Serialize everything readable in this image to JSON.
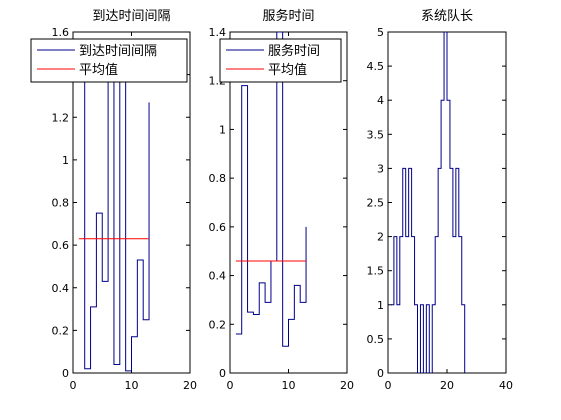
{
  "chart_data": [
    {
      "type": "line",
      "step": true,
      "title": "到达时间间隔",
      "xlim": [
        0,
        20
      ],
      "ylim": [
        0,
        1.6
      ],
      "xticks": [
        0,
        10,
        20
      ],
      "yticks": [
        0,
        0.2,
        0.4,
        0.6,
        0.8,
        1,
        1.2,
        1.4,
        1.6
      ],
      "ytick_labels": [
        "0",
        "0.2",
        "0.4",
        "0.6",
        "0.8",
        "1",
        "1.2",
        "1.4",
        "1.6"
      ],
      "legend": {
        "placement": "top",
        "entries": [
          "到达时间间隔",
          "平均值"
        ]
      },
      "series": [
        {
          "name": "到达时间间隔",
          "color": "#00008b",
          "x": [
            1,
            2,
            3,
            4,
            5,
            6,
            7,
            8,
            9,
            10,
            11,
            12,
            13
          ],
          "y": [
            1.55,
            0.02,
            0.31,
            0.75,
            0.43,
            1.55,
            0.04,
            1.55,
            0.01,
            0.17,
            0.53,
            0.25,
            1.27
          ]
        },
        {
          "name": "平均值",
          "color": "#ff0000",
          "x": [
            1,
            13
          ],
          "y": [
            0.63,
            0.63
          ]
        }
      ]
    },
    {
      "type": "line",
      "step": true,
      "title": "服务时间",
      "xlim": [
        0,
        20
      ],
      "ylim": [
        0,
        1.4
      ],
      "xticks": [
        0,
        10,
        20
      ],
      "yticks": [
        0,
        0.2,
        0.4,
        0.6,
        0.8,
        1,
        1.2,
        1.4
      ],
      "ytick_labels": [
        "0",
        "0.2",
        "0.4",
        "0.6",
        "0.8",
        "1",
        "1.2",
        "1.4"
      ],
      "legend": {
        "placement": "top",
        "entries": [
          "服务时间",
          "平均值"
        ]
      },
      "series": [
        {
          "name": "服务时间",
          "color": "#00008b",
          "x": [
            1,
            2,
            3,
            4,
            5,
            6,
            7,
            8,
            9,
            10,
            11,
            12,
            13
          ],
          "y": [
            0.16,
            1.18,
            0.25,
            0.24,
            0.37,
            0.29,
            0.46,
            1.4,
            0.11,
            0.22,
            0.36,
            0.29,
            0.6
          ]
        },
        {
          "name": "平均值",
          "color": "#ff0000",
          "x": [
            1,
            13
          ],
          "y": [
            0.46,
            0.46
          ]
        }
      ]
    },
    {
      "type": "line",
      "step": true,
      "title": "系统队长",
      "xlim": [
        0,
        40
      ],
      "ylim": [
        0,
        5
      ],
      "xticks": [
        0,
        20,
        40
      ],
      "yticks": [
        0,
        0.5,
        1,
        1.5,
        2,
        2.5,
        3,
        3.5,
        4,
        4.5,
        5
      ],
      "ytick_labels": [
        "0",
        "0.5",
        "1",
        "1.5",
        "2",
        "2.5",
        "3",
        "3.5",
        "4",
        "4.5",
        "5"
      ],
      "series": [
        {
          "color": "#00008b",
          "x": [
            1,
            2,
            3,
            4,
            5,
            6,
            7,
            8,
            9,
            10,
            11,
            12,
            13,
            14,
            15,
            16,
            17,
            18,
            19,
            20,
            21,
            22,
            23,
            24,
            25,
            26
          ],
          "y": [
            1,
            2,
            1,
            2,
            3,
            2,
            3,
            2,
            1,
            0,
            1,
            0,
            1,
            0,
            1,
            2,
            3,
            4,
            5,
            4,
            3,
            2,
            3,
            2,
            1,
            0
          ]
        }
      ]
    }
  ]
}
